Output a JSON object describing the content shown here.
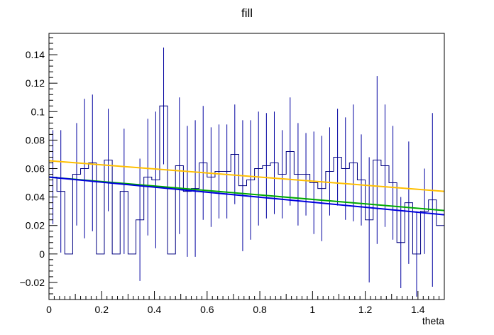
{
  "chart_data": {
    "type": "line",
    "title": "fill",
    "xlabel": "theta",
    "ylabel": "",
    "xlim": [
      0,
      1.5
    ],
    "ylim": [
      -0.032,
      0.155
    ],
    "x_ticks": [
      0,
      0.2,
      0.4,
      0.6,
      0.8,
      1,
      1.2,
      1.4
    ],
    "x_tick_labels": [
      "0",
      "0.2",
      "0.4",
      "0.6",
      "0.8",
      "1",
      "1.2",
      "1.4"
    ],
    "y_ticks": [
      -0.02,
      0,
      0.02,
      0.04,
      0.06,
      0.08,
      0.1,
      0.12,
      0.14
    ],
    "y_tick_labels": [
      "−0.02",
      "0",
      "0.02",
      "0.04",
      "0.06",
      "0.08",
      "0.1",
      "0.12",
      "0.14"
    ],
    "grid": false,
    "histogram": {
      "name": "fill",
      "bin_width": 0.03,
      "bin_start": 0,
      "values": [
        0.054,
        0.044,
        0,
        0.056,
        0.06,
        0.064,
        0,
        0.066,
        0,
        0.044,
        0,
        0.024,
        0.054,
        0.052,
        0.104,
        0,
        0.062,
        0.044,
        0.046,
        0.064,
        0.054,
        0.058,
        0.058,
        0.07,
        0.048,
        0.052,
        0.06,
        0.062,
        0.064,
        0.056,
        0.072,
        0.056,
        0.056,
        0.05,
        0.046,
        0.058,
        0.068,
        0.06,
        0.064,
        0.052,
        0.024,
        0.066,
        0.062,
        0.05,
        0.008,
        0.036,
        0,
        0.03,
        0.038,
        0.02,
        0
      ],
      "errors": [
        0.033,
        0.043,
        0,
        0.036,
        0.049,
        0.048,
        0,
        0.036,
        0,
        0.044,
        0,
        0.043,
        0.041,
        0.048,
        0.041,
        0,
        0.048,
        0.046,
        0.048,
        0.04,
        0.035,
        0.033,
        0.033,
        0.035,
        0.046,
        0.042,
        0.04,
        0.037,
        0.036,
        0.031,
        0.038,
        0.036,
        0.029,
        0.036,
        0.037,
        0.031,
        0.034,
        0.036,
        0.041,
        0.032,
        0.044,
        0.059,
        0.043,
        0.04,
        0.032,
        0.043,
        0.03,
        0.03,
        0.061,
        0,
        0
      ],
      "color": "#000080",
      "error_color": "#0000a0"
    },
    "series": [
      {
        "x": [
          0,
          1.5
        ],
        "values": [
          0.0655,
          0.044
        ],
        "color": "#ffbf00"
      },
      {
        "x": [
          0,
          1.5
        ],
        "values": [
          0.054,
          0.0305
        ],
        "color": "#00aa00"
      },
      {
        "x": [
          0,
          1.5
        ],
        "values": [
          0.054,
          0.0275
        ],
        "color": "#0000dd"
      }
    ]
  }
}
